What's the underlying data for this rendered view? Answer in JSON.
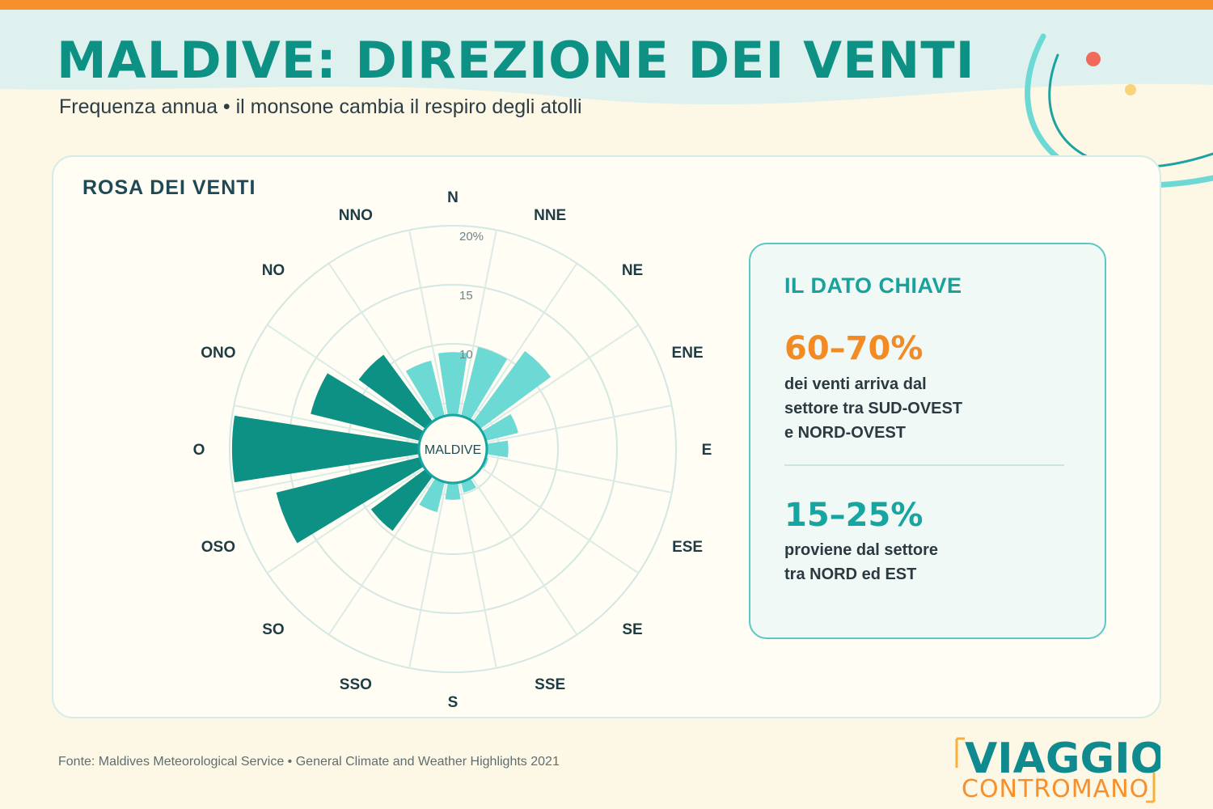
{
  "header": {
    "title": "MALDIVE: DIREZIONE DEI VENTI",
    "subtitle": "Frequenza annua • il monsone cambia il respiro degli atolli"
  },
  "colors": {
    "accent_teal": "#0e9185",
    "light_teal": "#6dd9d4",
    "orange": "#f7902a",
    "background": "#fdf7e6"
  },
  "chart_card": {
    "title": "ROSA DEI VENTI"
  },
  "chart_data": {
    "type": "wind-rose",
    "center_label": "MALDIVE",
    "radial_ticks": [
      "10",
      "15",
      "20%"
    ],
    "radial_tick_values": [
      10,
      15,
      20
    ],
    "rmin": 5,
    "rmax": 20,
    "directions": [
      "N",
      "NNE",
      "NE",
      "ENE",
      "E",
      "ESE",
      "SE",
      "SSE",
      "S",
      "SSO",
      "SO",
      "OSO",
      "O",
      "ONO",
      "NO",
      "NNO"
    ],
    "values": [
      9.3,
      10.0,
      11.4,
      6.8,
      5.8,
      4.2,
      3.1,
      4.9,
      5.4,
      6.6,
      9.7,
      16.5,
      19.8,
      13.5,
      11.0,
      8.8
    ],
    "sector_style": [
      "light",
      "light",
      "light",
      "light",
      "light",
      "light",
      "light",
      "light",
      "light",
      "light",
      "dark",
      "dark",
      "dark",
      "dark",
      "dark",
      "light"
    ]
  },
  "key_box": {
    "heading": "IL DATO CHIAVE",
    "stat1": {
      "value": "60–70%",
      "lines": [
        "dei venti arriva dal",
        "settore tra SUD-OVEST",
        "e NORD-OVEST"
      ]
    },
    "stat2": {
      "value": "15–25%",
      "lines": [
        "proviene dal settore",
        "tra NORD ed EST"
      ]
    }
  },
  "footer": {
    "source": "Fonte: Maldives Meteorological Service • General Climate and Weather Highlights 2021",
    "logo_top": "VIAGGIO",
    "logo_bottom": "CONTROMANO"
  }
}
